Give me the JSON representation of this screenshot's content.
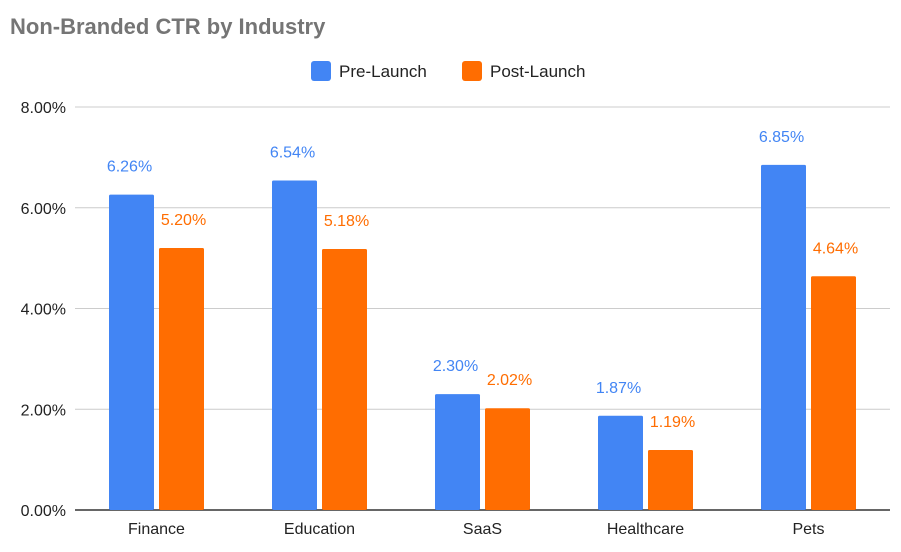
{
  "chart_data": {
    "type": "bar",
    "title": "Non-Branded CTR by Industry",
    "xlabel": "",
    "ylabel": "",
    "categories": [
      "Finance",
      "Education",
      "SaaS",
      "Healthcare",
      "Pets"
    ],
    "series": [
      {
        "name": "Pre-Launch",
        "color": "#4285F4",
        "values": [
          6.26,
          6.54,
          2.3,
          1.87,
          6.85
        ],
        "labels": [
          "6.26%",
          "6.54%",
          "2.30%",
          "1.87%",
          "6.85%"
        ]
      },
      {
        "name": "Post-Launch",
        "color": "#FF6D01",
        "values": [
          5.2,
          5.18,
          2.02,
          1.19,
          4.64
        ],
        "labels": [
          "5.20%",
          "5.18%",
          "2.02%",
          "1.19%",
          "4.64%"
        ]
      }
    ],
    "ylim": [
      0,
      8
    ],
    "yticks": [
      {
        "value": 0,
        "label": "0.00%"
      },
      {
        "value": 2,
        "label": "2.00%"
      },
      {
        "value": 4,
        "label": "4.00%"
      },
      {
        "value": 6,
        "label": "6.00%"
      },
      {
        "value": 8,
        "label": "8.00%"
      }
    ],
    "legend_position": "top-center",
    "grid": true
  }
}
